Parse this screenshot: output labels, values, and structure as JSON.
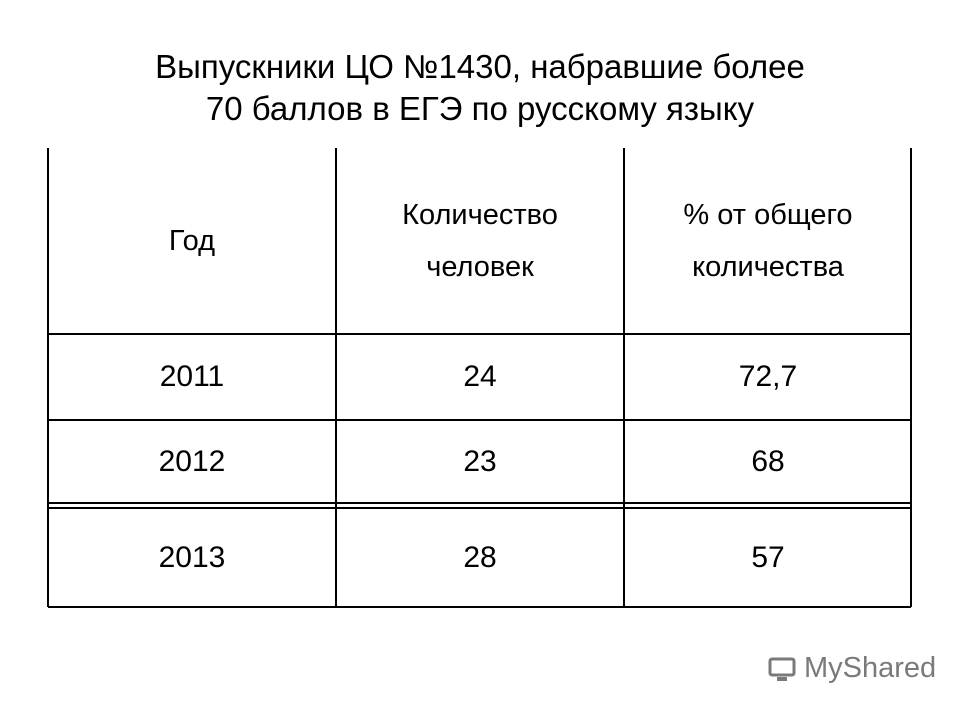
{
  "title": [
    "Выпускники ЦО №1430, набравшие более",
    "70 баллов в ЕГЭ по русскому языку"
  ],
  "table": {
    "header": [
      [
        "Год"
      ],
      [
        "Количество",
        "человек"
      ],
      [
        "% от общего",
        "количества"
      ]
    ],
    "rows": [
      [
        "2011",
        "24",
        "72,7"
      ],
      [
        "2012",
        "23",
        "68"
      ],
      [
        "2013",
        "28",
        "57"
      ]
    ]
  },
  "watermark": "MyShared"
}
